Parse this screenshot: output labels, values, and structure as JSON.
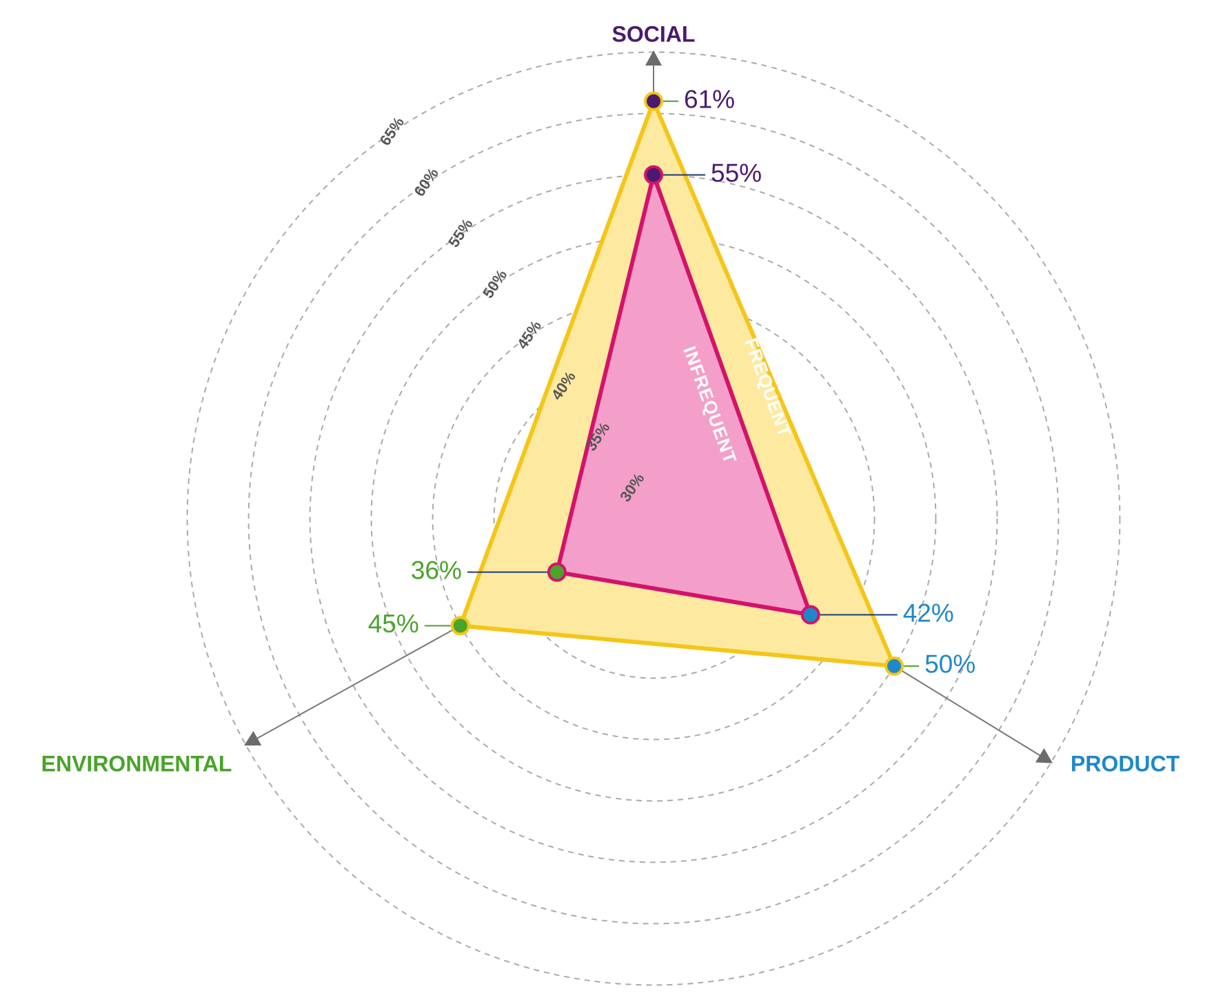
{
  "chart_data": {
    "type": "radar",
    "axes": [
      {
        "name": "SOCIAL",
        "color": "#4a1a6e"
      },
      {
        "name": "PRODUCT",
        "color": "#1f88c8"
      },
      {
        "name": "ENVIRONMENTAL",
        "color": "#4aa32a"
      }
    ],
    "rings": [
      {
        "value": 30,
        "label": "30%"
      },
      {
        "value": 35,
        "label": "35%"
      },
      {
        "value": 40,
        "label": "40%"
      },
      {
        "value": 45,
        "label": "45%"
      },
      {
        "value": 50,
        "label": "50%"
      },
      {
        "value": 55,
        "label": "55%"
      },
      {
        "value": 60,
        "label": "60%"
      },
      {
        "value": 65,
        "label": "65%"
      }
    ],
    "range": [
      27,
      65
    ],
    "series": [
      {
        "name": "FREQUENT",
        "fill": "#fdeaa0",
        "stroke": "#f5c518",
        "values": [
          61,
          50,
          45
        ],
        "labels": [
          "61%",
          "50%",
          "45%"
        ]
      },
      {
        "name": "INFREQUENT",
        "fill": "#f49fc9",
        "stroke": "#d4126b",
        "values": [
          55,
          42,
          36
        ],
        "labels": [
          "55%",
          "42%",
          "36%"
        ]
      }
    ]
  }
}
